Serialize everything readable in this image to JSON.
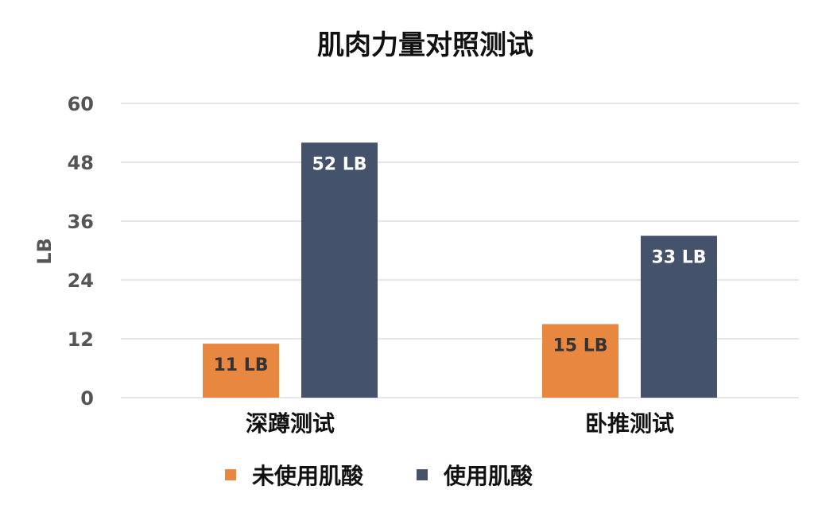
{
  "chart_data": {
    "type": "bar",
    "title": "肌肉力量对照测试",
    "ylabel": "LB",
    "xlabel": "",
    "ylim": [
      0,
      60
    ],
    "yticks": [
      "0",
      "12",
      "24",
      "36",
      "48",
      "60"
    ],
    "categories": [
      "深蹲测试",
      "卧推测试"
    ],
    "series": [
      {
        "name": "未使用肌酸",
        "values": [
          11,
          15
        ],
        "labels": [
          "11 LB",
          "15 LB"
        ],
        "color": "#e8873f",
        "label_color": "#333333"
      },
      {
        "name": "使用肌酸",
        "values": [
          52,
          33
        ],
        "labels": [
          "52 LB",
          "33 LB"
        ],
        "color": "#44526b",
        "label_color": "#ffffff"
      }
    ],
    "grid": true,
    "legend": "bottom"
  }
}
